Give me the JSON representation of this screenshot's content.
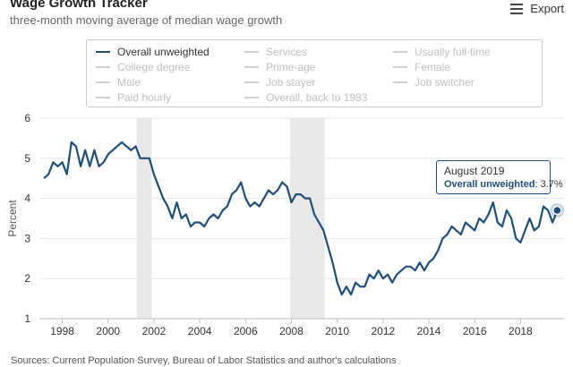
{
  "header": {
    "title": "Wage Growth Tracker",
    "subtitle": "three-month moving average of median wage growth",
    "export_label": "Export"
  },
  "legend": {
    "items": [
      {
        "label": "Overall unweighted",
        "active": true
      },
      {
        "label": "Services",
        "active": false
      },
      {
        "label": "Usually full-time",
        "active": false
      },
      {
        "label": "College degree",
        "active": false
      },
      {
        "label": "Prime-age",
        "active": false
      },
      {
        "label": "Female",
        "active": false
      },
      {
        "label": "Male",
        "active": false
      },
      {
        "label": "Job stayer",
        "active": false
      },
      {
        "label": "Job switcher",
        "active": false
      },
      {
        "label": "Paid hourly",
        "active": false
      },
      {
        "label": "Overall, back to 1983",
        "active": false
      }
    ]
  },
  "tooltip": {
    "date": "August 2019",
    "series": "Overall unweighted",
    "value": "3.7%"
  },
  "source": "Sources: Current Population Survey, Bureau of Labor Statistics and author's calculations",
  "colors": {
    "line": "#1f4e79",
    "recession": "#e8e8e8",
    "grid": "#e6e6e6"
  },
  "chart_data": {
    "type": "line",
    "title": "Wage Growth Tracker",
    "subtitle": "three-month moving average of median wage growth",
    "ylabel": "Percent",
    "xlabel": "",
    "ylim": [
      1,
      6
    ],
    "xlim": [
      1997,
      2019.9
    ],
    "yticks": [
      1,
      2,
      3,
      4,
      5,
      6
    ],
    "xticks": [
      "1998",
      "2000",
      "2002",
      "2004",
      "2006",
      "2008",
      "2010",
      "2012",
      "2014",
      "2016",
      "2018"
    ],
    "grid": true,
    "legend_position": "top",
    "shaded_periods": [
      [
        2001.25,
        2001.9
      ],
      [
        2007.95,
        2009.45
      ]
    ],
    "series": [
      {
        "name": "Overall unweighted",
        "x": [
          1997.2,
          1997.4,
          1997.6,
          1997.8,
          1998.0,
          1998.2,
          1998.4,
          1998.6,
          1998.8,
          1999.0,
          1999.2,
          1999.4,
          1999.6,
          1999.8,
          2000.0,
          2000.2,
          2000.4,
          2000.6,
          2000.8,
          2001.0,
          2001.2,
          2001.4,
          2001.6,
          2001.8,
          2002.0,
          2002.2,
          2002.4,
          2002.6,
          2002.8,
          2003.0,
          2003.2,
          2003.4,
          2003.6,
          2003.8,
          2004.0,
          2004.2,
          2004.4,
          2004.6,
          2004.8,
          2005.0,
          2005.2,
          2005.4,
          2005.6,
          2005.8,
          2006.0,
          2006.2,
          2006.4,
          2006.6,
          2006.8,
          2007.0,
          2007.2,
          2007.4,
          2007.6,
          2007.8,
          2008.0,
          2008.2,
          2008.4,
          2008.6,
          2008.8,
          2009.0,
          2009.2,
          2009.4,
          2009.6,
          2009.8,
          2010.0,
          2010.2,
          2010.4,
          2010.6,
          2010.8,
          2011.0,
          2011.2,
          2011.4,
          2011.6,
          2011.8,
          2012.0,
          2012.2,
          2012.4,
          2012.6,
          2012.8,
          2013.0,
          2013.2,
          2013.4,
          2013.6,
          2013.8,
          2014.0,
          2014.2,
          2014.4,
          2014.6,
          2014.8,
          2015.0,
          2015.2,
          2015.4,
          2015.6,
          2015.8,
          2016.0,
          2016.2,
          2016.4,
          2016.6,
          2016.8,
          2017.0,
          2017.2,
          2017.4,
          2017.6,
          2017.8,
          2018.0,
          2018.2,
          2018.4,
          2018.6,
          2018.8,
          2019.0,
          2019.2,
          2019.4,
          2019.6
        ],
        "values": [
          4.5,
          4.6,
          4.9,
          4.8,
          4.9,
          4.6,
          5.4,
          5.3,
          4.8,
          5.2,
          4.8,
          5.2,
          4.8,
          4.9,
          5.1,
          5.2,
          5.3,
          5.4,
          5.3,
          5.2,
          5.3,
          5.0,
          5.0,
          5.0,
          4.6,
          4.3,
          4.0,
          3.8,
          3.5,
          3.9,
          3.5,
          3.6,
          3.3,
          3.4,
          3.4,
          3.3,
          3.5,
          3.6,
          3.5,
          3.7,
          3.8,
          4.1,
          4.2,
          4.4,
          4.0,
          3.8,
          3.9,
          3.8,
          4.0,
          4.2,
          4.1,
          4.2,
          4.4,
          4.3,
          3.9,
          4.1,
          4.1,
          4.0,
          4.0,
          3.6,
          3.4,
          3.2,
          2.8,
          2.4,
          1.9,
          1.6,
          1.8,
          1.6,
          1.9,
          1.8,
          1.8,
          2.1,
          2.0,
          2.2,
          2.0,
          2.1,
          1.9,
          2.1,
          2.2,
          2.3,
          2.3,
          2.2,
          2.4,
          2.2,
          2.4,
          2.5,
          2.7,
          3.0,
          3.1,
          3.3,
          3.2,
          3.1,
          3.4,
          3.3,
          3.2,
          3.5,
          3.4,
          3.6,
          3.9,
          3.4,
          3.3,
          3.7,
          3.5,
          3.0,
          2.9,
          3.2,
          3.5,
          3.2,
          3.3,
          3.8,
          3.7,
          3.4,
          3.7
        ]
      }
    ],
    "highlight": {
      "x": 2019.6,
      "value": 3.7,
      "label": "August 2019"
    }
  }
}
